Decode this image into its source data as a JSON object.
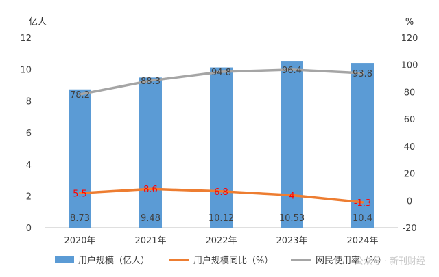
{
  "chart_data": {
    "type": "bar",
    "categories": [
      "2020年",
      "2021年",
      "2022年",
      "2023年",
      "2024年"
    ],
    "left_axis": {
      "unit": "亿人",
      "ylim": [
        0,
        12
      ],
      "ticks": [
        0,
        2,
        4,
        6,
        8,
        10,
        12
      ]
    },
    "right_axis": {
      "unit": "%",
      "ylim": [
        -20,
        120
      ],
      "ticks": [
        -20,
        0,
        20,
        40,
        60,
        80,
        100,
        120
      ]
    },
    "series": [
      {
        "name": "用户规模（亿人）",
        "type": "bar",
        "axis": "left",
        "color": "#5b9bd5",
        "values": [
          8.73,
          9.48,
          10.12,
          10.53,
          10.4
        ],
        "labels": [
          "8.73",
          "9.48",
          "10.12",
          "10.53",
          "10.4"
        ]
      },
      {
        "name": "用户规模同比（%）",
        "type": "line",
        "axis": "right",
        "color": "#ed7d31",
        "values": [
          5.5,
          8.6,
          6.8,
          4,
          -1.3
        ],
        "labels": [
          "5.5",
          "8.6",
          "6.8",
          "4",
          "-1.3"
        ],
        "label_color": "#ff0000"
      },
      {
        "name": "网民使用率（%）",
        "type": "line",
        "axis": "right",
        "color": "#a5a5a5",
        "values": [
          78.2,
          88.3,
          94.8,
          96.4,
          93.8
        ],
        "labels": [
          "78.2",
          "88.3",
          "94.8",
          "96.4",
          "93.8"
        ]
      }
    ],
    "grid": false,
    "legend": "bottom"
  },
  "watermark": "公众号 · 新刊财经"
}
